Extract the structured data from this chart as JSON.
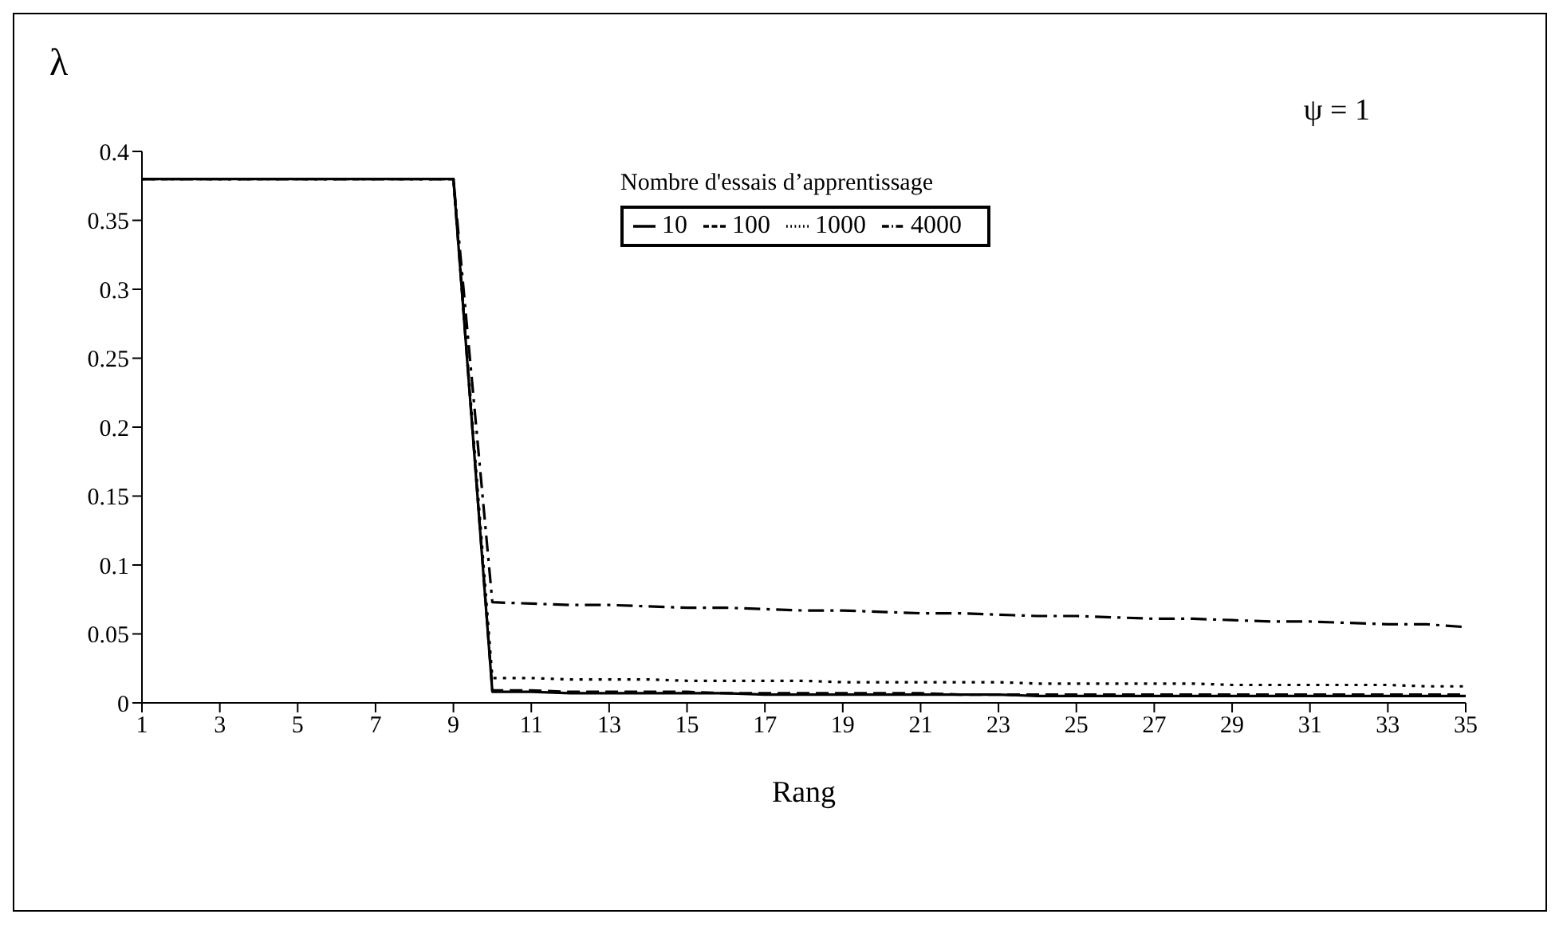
{
  "chart_data": {
    "type": "line",
    "ylabel": "λ",
    "xlabel": "Rang",
    "legend_title": "Nombre d'essais d’apprentissage",
    "annotations": [
      "ψ = 1"
    ],
    "x": [
      1,
      2,
      3,
      4,
      5,
      6,
      7,
      8,
      9,
      10,
      11,
      12,
      13,
      14,
      15,
      16,
      17,
      18,
      19,
      20,
      21,
      22,
      23,
      24,
      25,
      26,
      27,
      28,
      29,
      30,
      31,
      32,
      33,
      34,
      35
    ],
    "xlim": [
      1,
      35
    ],
    "xticks": [
      1,
      3,
      5,
      7,
      9,
      11,
      13,
      15,
      17,
      19,
      21,
      23,
      25,
      27,
      29,
      31,
      33,
      35
    ],
    "ylim": [
      0,
      0.4
    ],
    "yticks": [
      0,
      0.05,
      0.1,
      0.15,
      0.2,
      0.25,
      0.3,
      0.35,
      0.4
    ],
    "legend": "top",
    "grid": false,
    "marker": "none",
    "series": [
      {
        "name": "10",
        "color": "#000000",
        "line_style": "solid",
        "values": [
          0.38,
          0.38,
          0.38,
          0.38,
          0.38,
          0.38,
          0.38,
          0.38,
          0.38,
          0.008,
          0.008,
          0.007,
          0.007,
          0.007,
          0.007,
          0.007,
          0.006,
          0.006,
          0.006,
          0.006,
          0.006,
          0.006,
          0.006,
          0.005,
          0.005,
          0.005,
          0.005,
          0.005,
          0.005,
          0.005,
          0.005,
          0.005,
          0.005,
          0.005,
          0.005
        ]
      },
      {
        "name": "100",
        "color": "#000000",
        "line_style": "dashed",
        "values": [
          0.38,
          0.38,
          0.38,
          0.38,
          0.38,
          0.38,
          0.38,
          0.38,
          0.38,
          0.009,
          0.009,
          0.008,
          0.008,
          0.008,
          0.008,
          0.007,
          0.007,
          0.007,
          0.007,
          0.007,
          0.007,
          0.006,
          0.006,
          0.006,
          0.006,
          0.006,
          0.006,
          0.006,
          0.006,
          0.006,
          0.006,
          0.006,
          0.006,
          0.006,
          0.006
        ]
      },
      {
        "name": "1000",
        "color": "#000000",
        "line_style": "dotted",
        "values": [
          0.38,
          0.38,
          0.38,
          0.38,
          0.38,
          0.38,
          0.38,
          0.38,
          0.38,
          0.018,
          0.018,
          0.017,
          0.017,
          0.017,
          0.016,
          0.016,
          0.016,
          0.016,
          0.015,
          0.015,
          0.015,
          0.015,
          0.015,
          0.014,
          0.014,
          0.014,
          0.014,
          0.014,
          0.013,
          0.013,
          0.013,
          0.013,
          0.013,
          0.012,
          0.012
        ]
      },
      {
        "name": "4000",
        "color": "#000000",
        "line_style": "dashdot",
        "values": [
          0.38,
          0.38,
          0.38,
          0.38,
          0.38,
          0.38,
          0.38,
          0.38,
          0.38,
          0.073,
          0.072,
          0.071,
          0.071,
          0.07,
          0.069,
          0.069,
          0.068,
          0.067,
          0.067,
          0.066,
          0.065,
          0.065,
          0.064,
          0.063,
          0.063,
          0.062,
          0.061,
          0.061,
          0.06,
          0.059,
          0.059,
          0.058,
          0.057,
          0.057,
          0.055
        ]
      }
    ]
  }
}
